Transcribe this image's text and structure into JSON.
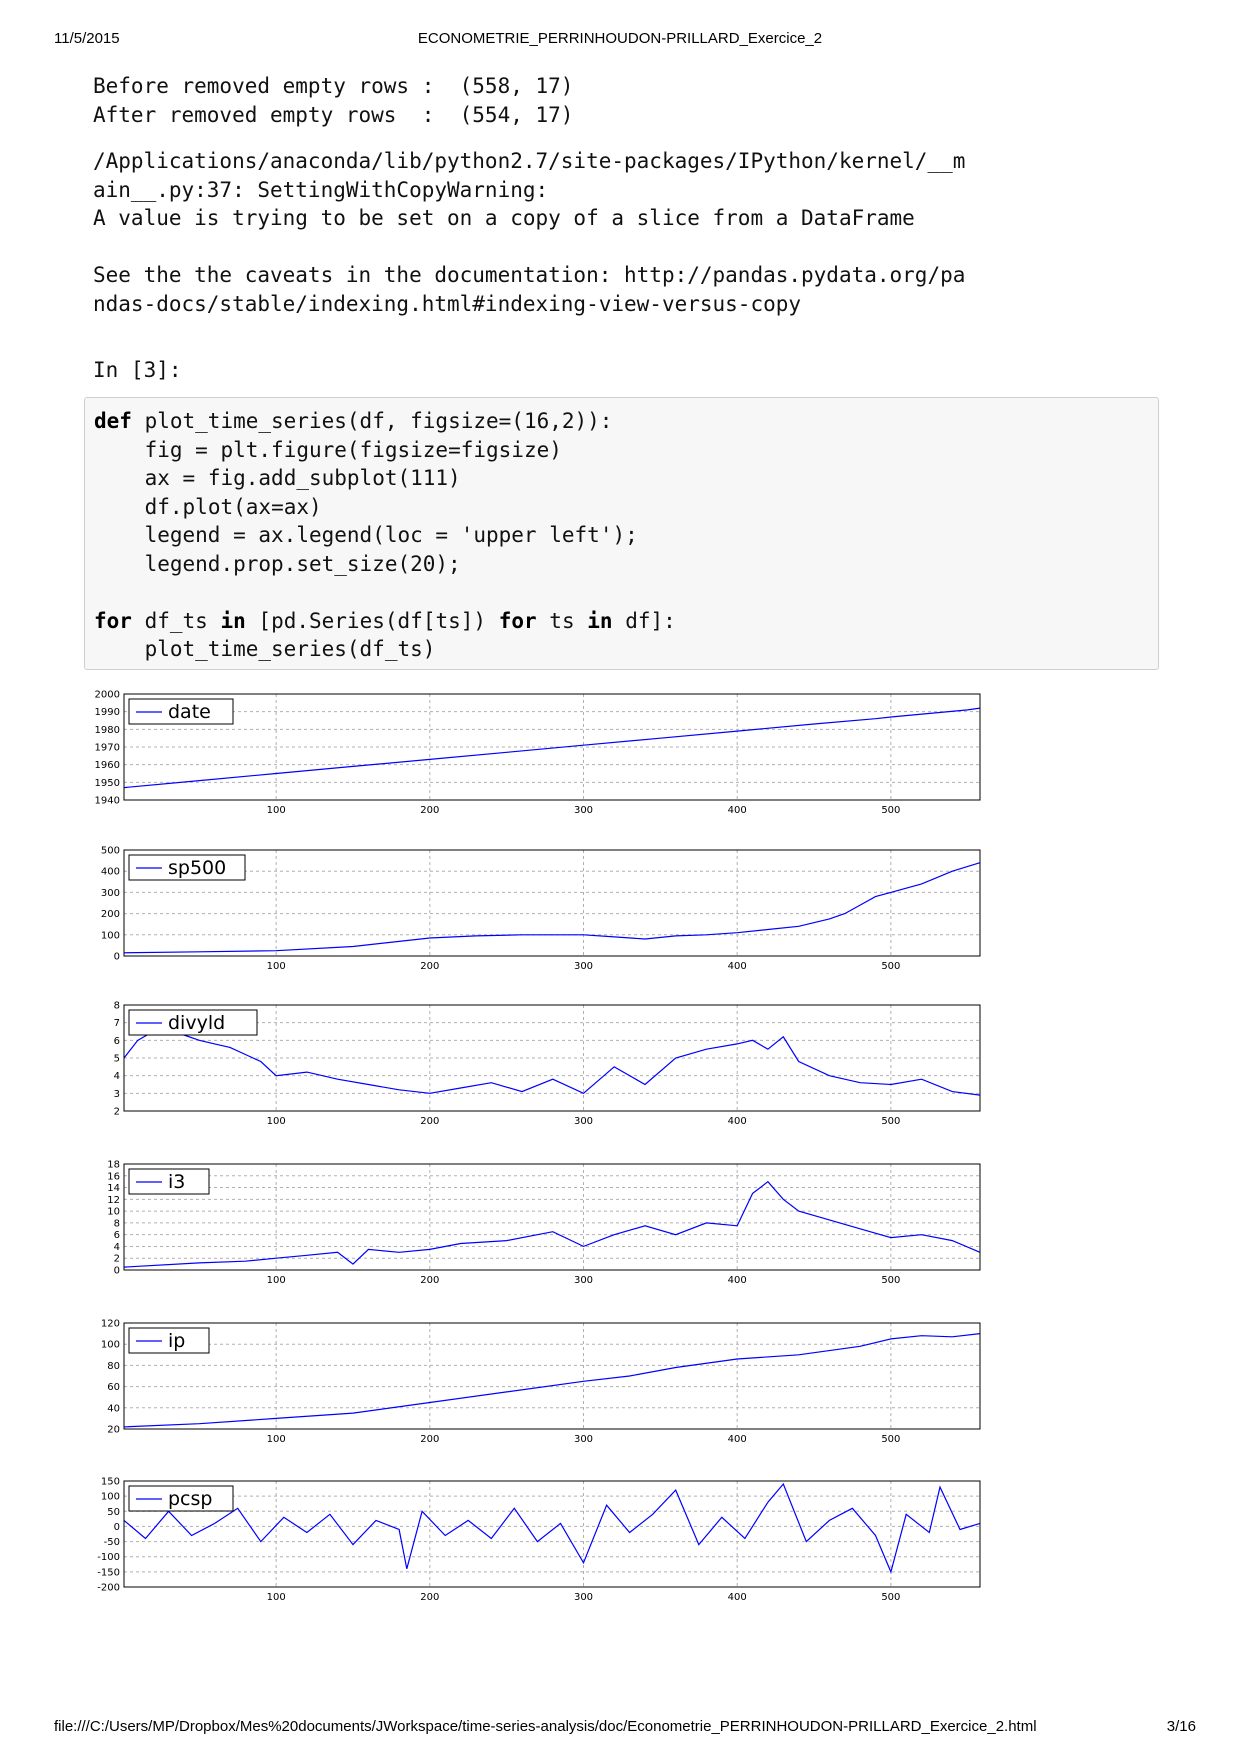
{
  "header": {
    "date": "11/5/2015",
    "title": "ECONOMETRIE_PERRINHOUDON-PRILLARD_Exercice_2"
  },
  "footer": {
    "path": "file:///C:/Users/MP/Dropbox/Mes%20documents/JWorkspace/time-series-analysis/doc/Econometrie_PERRINHOUDON-PRILLARD_Exercice_2.html",
    "page": "3/16"
  },
  "output": {
    "lines": [
      "Before removed empty rows :  (558, 17)",
      "After removed empty rows  :  (554, 17)"
    ],
    "warning": [
      "/Applications/anaconda/lib/python2.7/site-packages/IPython/kernel/__m",
      "ain__.py:37: SettingWithCopyWarning:",
      "A value is trying to be set on a copy of a slice from a DataFrame",
      "",
      "See the the caveats in the documentation: http://pandas.pydata.org/pa",
      "ndas-docs/stable/indexing.html#indexing-view-versus-copy"
    ]
  },
  "cell": {
    "prompt": "In [3]:",
    "code": [
      "def plot_time_series(df, figsize=(16,2)):",
      "    fig = plt.figure(figsize=figsize)",
      "    ax = fig.add_subplot(111)",
      "    df.plot(ax=ax)",
      "    legend = ax.legend(loc = 'upper left');",
      "    legend.prop.set_size(20);",
      "",
      "for df_ts in [pd.Series(df[ts]) for ts in df]:",
      "    plot_time_series(df_ts)"
    ],
    "keywords": [
      "def",
      "for",
      "in"
    ]
  },
  "colors": {
    "line": "#0000ff",
    "grid": "#b0b0b0",
    "code_bg": "#f7f7f7",
    "code_border": "#cfcfcf"
  },
  "chart_data": [
    {
      "type": "line",
      "legend": "date",
      "legend_loc": "upper-left",
      "grid": true,
      "xlim": [
        1,
        558
      ],
      "ylim": [
        1940,
        2000
      ],
      "xticks": [
        100,
        200,
        300,
        400,
        500
      ],
      "yticks": [
        1940,
        1950,
        1960,
        1970,
        1980,
        1990,
        2000
      ],
      "series": [
        {
          "name": "date",
          "x": [
            1,
            50,
            100,
            150,
            200,
            250,
            300,
            350,
            400,
            450,
            490,
            500,
            550,
            558
          ],
          "y": [
            1947,
            1951,
            1955,
            1959,
            1963,
            1967,
            1971,
            1975,
            1979,
            1983,
            1986,
            1987,
            1991,
            1992
          ]
        }
      ]
    },
    {
      "type": "line",
      "legend": "sp500",
      "legend_loc": "upper-left",
      "grid": true,
      "xlim": [
        1,
        558
      ],
      "ylim": [
        0,
        500
      ],
      "xticks": [
        100,
        200,
        300,
        400,
        500
      ],
      "yticks": [
        0,
        100,
        200,
        300,
        400,
        500
      ],
      "series": [
        {
          "name": "sp500",
          "x": [
            1,
            50,
            100,
            150,
            200,
            230,
            260,
            300,
            320,
            340,
            360,
            380,
            400,
            420,
            440,
            460,
            470,
            480,
            490,
            500,
            520,
            540,
            558
          ],
          "y": [
            15,
            20,
            25,
            45,
            85,
            95,
            100,
            100,
            90,
            80,
            95,
            100,
            110,
            125,
            140,
            175,
            200,
            240,
            280,
            300,
            340,
            400,
            440
          ]
        }
      ]
    },
    {
      "type": "line",
      "legend": "divyld",
      "legend_loc": "upper-left",
      "grid": true,
      "xlim": [
        1,
        558
      ],
      "ylim": [
        2,
        8
      ],
      "xticks": [
        100,
        200,
        300,
        400,
        500
      ],
      "yticks": [
        2,
        3,
        4,
        5,
        6,
        7,
        8
      ],
      "series": [
        {
          "name": "divyld",
          "x": [
            1,
            10,
            20,
            30,
            40,
            50,
            60,
            70,
            80,
            90,
            100,
            120,
            140,
            160,
            180,
            200,
            220,
            240,
            260,
            280,
            300,
            320,
            340,
            360,
            380,
            400,
            410,
            420,
            430,
            440,
            460,
            480,
            500,
            520,
            540,
            558
          ],
          "y": [
            5.0,
            6.0,
            6.5,
            6.5,
            6.3,
            6.0,
            5.8,
            5.6,
            5.2,
            4.8,
            4.0,
            4.2,
            3.8,
            3.5,
            3.2,
            3.0,
            3.3,
            3.6,
            3.1,
            3.8,
            3.0,
            4.5,
            3.5,
            5.0,
            5.5,
            5.8,
            6.0,
            5.5,
            6.2,
            4.8,
            4.0,
            3.6,
            3.5,
            3.8,
            3.1,
            2.9
          ]
        }
      ]
    },
    {
      "type": "line",
      "legend": "i3",
      "legend_loc": "upper-left",
      "grid": true,
      "xlim": [
        1,
        558
      ],
      "ylim": [
        0,
        18
      ],
      "xticks": [
        100,
        200,
        300,
        400,
        500
      ],
      "yticks": [
        0,
        2,
        4,
        6,
        8,
        10,
        12,
        14,
        16,
        18
      ],
      "series": [
        {
          "name": "i3",
          "x": [
            1,
            50,
            80,
            100,
            120,
            140,
            150,
            160,
            180,
            200,
            220,
            250,
            280,
            300,
            320,
            340,
            360,
            380,
            400,
            410,
            420,
            430,
            440,
            460,
            480,
            500,
            520,
            540,
            558
          ],
          "y": [
            0.5,
            1.2,
            1.5,
            2.0,
            2.5,
            3.0,
            1.0,
            3.5,
            3.0,
            3.5,
            4.5,
            5.0,
            6.5,
            4.0,
            6.0,
            7.5,
            6.0,
            8.0,
            7.5,
            13.0,
            15.0,
            12.0,
            10.0,
            8.5,
            7.0,
            5.5,
            6.0,
            5.0,
            3.0
          ]
        }
      ]
    },
    {
      "type": "line",
      "legend": "ip",
      "legend_loc": "upper-left",
      "grid": true,
      "xlim": [
        1,
        558
      ],
      "ylim": [
        20,
        120
      ],
      "xticks": [
        100,
        200,
        300,
        400,
        500
      ],
      "yticks": [
        20,
        40,
        60,
        80,
        100,
        120
      ],
      "series": [
        {
          "name": "ip",
          "x": [
            1,
            50,
            100,
            150,
            200,
            250,
            300,
            330,
            360,
            400,
            440,
            480,
            500,
            520,
            540,
            558
          ],
          "y": [
            22,
            25,
            30,
            35,
            45,
            55,
            65,
            70,
            78,
            86,
            90,
            98,
            105,
            108,
            107,
            110
          ]
        }
      ]
    },
    {
      "type": "line",
      "legend": "pcsp",
      "legend_loc": "upper-left",
      "grid": true,
      "xlim": [
        1,
        558
      ],
      "ylim": [
        -200,
        150
      ],
      "xticks": [
        100,
        200,
        300,
        400,
        500
      ],
      "yticks": [
        -200,
        -150,
        -100,
        -50,
        0,
        50,
        100,
        150
      ],
      "series": [
        {
          "name": "pcsp",
          "x": [
            1,
            15,
            30,
            45,
            60,
            75,
            90,
            105,
            120,
            135,
            150,
            165,
            180,
            185,
            195,
            210,
            225,
            240,
            255,
            270,
            285,
            300,
            315,
            330,
            345,
            360,
            375,
            390,
            405,
            420,
            430,
            445,
            460,
            475,
            490,
            500,
            510,
            525,
            532,
            545,
            558
          ],
          "y": [
            20,
            -40,
            50,
            -30,
            10,
            60,
            -50,
            30,
            -20,
            40,
            -60,
            20,
            -10,
            -140,
            50,
            -30,
            20,
            -40,
            60,
            -50,
            10,
            -120,
            70,
            -20,
            40,
            120,
            -60,
            30,
            -40,
            80,
            140,
            -50,
            20,
            60,
            -30,
            -150,
            40,
            -20,
            130,
            -10,
            10
          ]
        }
      ]
    }
  ]
}
